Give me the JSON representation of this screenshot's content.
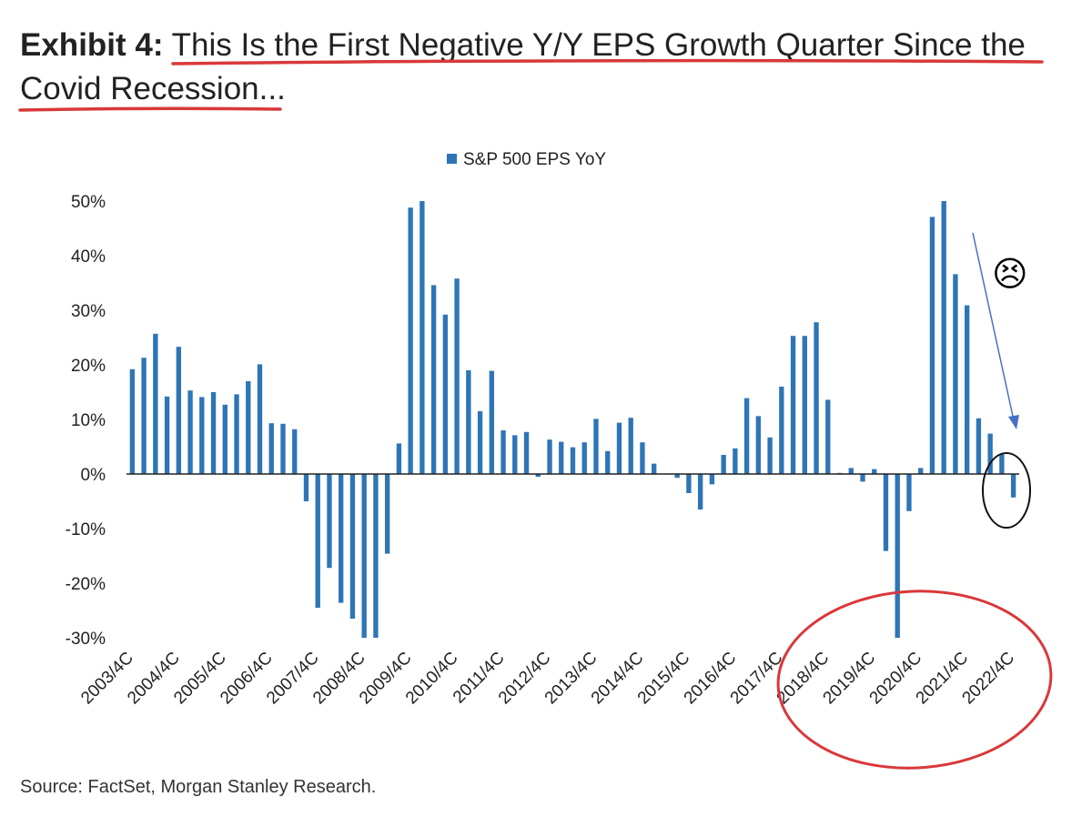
{
  "title": {
    "exhibit_label": "Exhibit 4:",
    "text_line1": "This Is the First Negative Y/Y EPS Growth Quarter Since the",
    "text_line2": "Covid Recession..."
  },
  "source": "Source: FactSet, Morgan Stanley Research.",
  "annotation": {
    "emoji": "😣"
  },
  "colors": {
    "bar": "#2e75b6",
    "highlight": "#d9383a",
    "text": "#222222"
  },
  "chart_data": {
    "type": "bar",
    "legend": "S&P 500 EPS YoY",
    "legend_position": "top-center",
    "ylim": [
      -30,
      50
    ],
    "yticks": [
      50,
      40,
      30,
      20,
      10,
      0,
      -10,
      -20,
      -30
    ],
    "ytick_labels": [
      "50%",
      "40%",
      "30%",
      "20%",
      "10%",
      "0%",
      "-10%",
      "-20%",
      "-30%"
    ],
    "xtick_labels": [
      "2003/4C",
      "2004/4C",
      "2005/4C",
      "2006/4C",
      "2007/4C",
      "2008/4C",
      "2009/4C",
      "2010/4C",
      "2011/4C",
      "2012/4C",
      "2013/4C",
      "2014/4C",
      "2015/4C",
      "2016/4C",
      "2017/4C",
      "2018/4C",
      "2019/4C",
      "2020/4C",
      "2021/4C",
      "2022/4C"
    ],
    "series": [
      {
        "name": "S&P 500 EPS YoY",
        "values": [
          19.2,
          21.3,
          25.7,
          14.2,
          23.3,
          15.3,
          14.1,
          15,
          12.7,
          14.6,
          17,
          20.1,
          9.3,
          9.2,
          8.2,
          -5,
          -24.5,
          -17.2,
          -23.6,
          -26.5,
          -30,
          -30,
          -14.6,
          5.6,
          48.8,
          50,
          34.6,
          29.2,
          35.8,
          19,
          11.5,
          18.9,
          8,
          7.1,
          7.7,
          -0.5,
          6.3,
          5.9,
          4.9,
          5.8,
          10.1,
          4.2,
          9.4,
          10.3,
          5.8,
          1.9,
          0,
          -0.7,
          -3.5,
          -6.5,
          -1.9,
          3.5,
          4.7,
          13.9,
          10.6,
          6.7,
          16,
          25.3,
          25.3,
          27.8,
          13.6,
          0.2,
          1.1,
          -1.4,
          0.9,
          -14.1,
          -30,
          -6.8,
          1.1,
          47.1,
          50,
          36.6,
          30.9,
          10.2,
          7.4,
          3.6,
          -4.3
        ]
      }
    ]
  }
}
